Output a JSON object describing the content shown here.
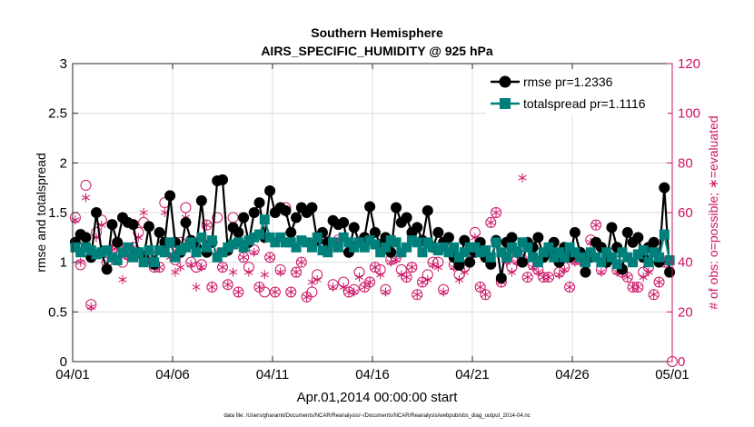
{
  "chart_data": {
    "type": "line",
    "title": "Southern Hemisphere",
    "subtitle": "AIRS_SPECIFIC_HUMIDITY @ 925 hPa",
    "xlabel": "Apr.01,2014 00:00:00 start",
    "ylabel": "rmse and totalspread",
    "y2label": "# of obs: o=possible; ∗=evaluated",
    "footnote": "data file: /Users/gharamti/Documents/NCAR/Reanalysis/~/Documents/NCAR/Reanalysis/webpub/obs_diag_output_2014-04.nc",
    "xlim": [
      0,
      30
    ],
    "ylim": [
      0,
      3
    ],
    "y2lim": [
      0,
      120
    ],
    "x_ticks": [
      0,
      5,
      10,
      15,
      20,
      25,
      30
    ],
    "x_tick_labels": [
      "04/01",
      "04/06",
      "04/11",
      "04/16",
      "04/21",
      "04/26",
      "05/01"
    ],
    "y_ticks": [
      "0",
      "0.5",
      "1",
      "1.5",
      "2",
      "2.5",
      "3"
    ],
    "y2_ticks": [
      "0",
      "20",
      "40",
      "60",
      "80",
      "100",
      "120"
    ],
    "grid": true,
    "legend_position": "top-right",
    "colors": {
      "rmse": "#000000",
      "spread": "#00807a",
      "obs": "#cc1466",
      "grid": "#dcdcdc"
    },
    "series": [
      {
        "name": "rmse pr=1.2336",
        "key": "rmse",
        "axis": "left",
        "marker": "filled-circle",
        "values": [
          1.2,
          1.28,
          1.25,
          1.05,
          1.5,
          1.1,
          0.93,
          1.38,
          1.2,
          1.45,
          1.4,
          1.38,
          1.1,
          1.05,
          1.36,
          0.98,
          1.3,
          1.2,
          1.67,
          1.2,
          1.1,
          1.4,
          1.22,
          1.15,
          1.62,
          1.1,
          1.2,
          1.82,
          1.83,
          1.12,
          1.35,
          1.3,
          1.45,
          1.2,
          1.5,
          1.6,
          1.25,
          1.72,
          1.5,
          1.55,
          1.52,
          1.3,
          1.45,
          1.55,
          1.5,
          1.55,
          1.22,
          1.3,
          1.2,
          1.42,
          1.38,
          1.4,
          1.1,
          1.35,
          1.2,
          1.25,
          1.56,
          1.3,
          1.18,
          1.25,
          1.1,
          1.55,
          1.4,
          1.45,
          1.3,
          1.35,
          1.22,
          1.52,
          1.15,
          1.3,
          1.2,
          1.25,
          1.05,
          0.97,
          1.22,
          1.0,
          1.1,
          1.2,
          1.05,
          0.98,
          1.22,
          0.84,
          1.2,
          1.25,
          1.1,
          1.0,
          1.2,
          1.15,
          1.25,
          1.05,
          1.1,
          1.2,
          1.0,
          1.15,
          1.05,
          1.3,
          1.1,
          0.9,
          1.05,
          1.2,
          1.15,
          1.0,
          1.35,
          1.15,
          0.93,
          1.3,
          1.2,
          1.25,
          1.05,
          1.15,
          1.2,
          1.0,
          1.75,
          0.9
        ]
      },
      {
        "name": "totalspread pr=1.1116",
        "key": "spread",
        "axis": "left",
        "marker": "filled-square",
        "values": [
          1.15,
          1.1,
          1.15,
          1.12,
          1.08,
          1.1,
          1.12,
          1.05,
          1.02,
          1.1,
          1.15,
          1.05,
          1.1,
          1.0,
          1.12,
          1.0,
          1.12,
          1.1,
          1.2,
          1.05,
          1.12,
          1.15,
          1.2,
          1.1,
          1.25,
          1.15,
          1.22,
          1.05,
          1.1,
          1.15,
          1.18,
          1.2,
          1.15,
          1.22,
          1.25,
          1.28,
          1.43,
          1.25,
          1.2,
          1.25,
          1.2,
          1.2,
          1.15,
          1.22,
          1.2,
          1.15,
          1.25,
          1.12,
          1.1,
          1.2,
          1.15,
          1.25,
          1.2,
          1.15,
          1.2,
          1.15,
          1.22,
          1.18,
          1.1,
          1.15,
          1.22,
          1.2,
          1.1,
          1.15,
          1.22,
          1.2,
          1.1,
          1.2,
          1.15,
          1.12,
          1.15,
          1.1,
          1.15,
          1.05,
          1.1,
          1.15,
          1.15,
          1.1,
          1.12,
          1.05,
          1.2,
          1.1,
          1.05,
          1.15,
          1.1,
          1.2,
          1.15,
          1.05,
          1.0,
          1.1,
          1.15,
          1.05,
          1.1,
          1.05,
          1.15,
          1.1,
          1.05,
          1.0,
          1.1,
          1.05,
          1.0,
          1.1,
          1.05,
          0.98,
          1.1,
          1.05,
          1.0,
          1.08,
          1.12,
          1.0,
          1.1,
          1.05,
          1.28,
          1.02
        ]
      },
      {
        "name": "obs possible",
        "key": "obs_possible",
        "axis": "right",
        "marker": "open-circle",
        "values": [
          58,
          39,
          71,
          23,
          52,
          57,
          40,
          45,
          47,
          40,
          43,
          46,
          52,
          56,
          44,
          38,
          38,
          64,
          44,
          41,
          48,
          62,
          40,
          38,
          39,
          55,
          30,
          58,
          38,
          31,
          58,
          28,
          42,
          38,
          45,
          30,
          28,
          42,
          28,
          37,
          62,
          28,
          36,
          40,
          26,
          28,
          35,
          50,
          45,
          31,
          49,
          32,
          28,
          29,
          36,
          30,
          32,
          38,
          37,
          29,
          41,
          42,
          37,
          34,
          38,
          27,
          32,
          35,
          40,
          40,
          29,
          45,
          39,
          35,
          38,
          44,
          52,
          30,
          27,
          56,
          60,
          32,
          42,
          38,
          41,
          41,
          34,
          39,
          37,
          34,
          34,
          44,
          36,
          38,
          30,
          41,
          41,
          42,
          49,
          55,
          37,
          40,
          42,
          37,
          36,
          34,
          30,
          30,
          36,
          38,
          27,
          32,
          40,
          0
        ]
      },
      {
        "name": "obs evaluated",
        "key": "obs_evaluated",
        "axis": "right",
        "marker": "asterisk",
        "values": [
          57,
          40,
          66,
          22,
          50,
          55,
          38,
          45,
          46,
          33,
          42,
          46,
          50,
          60,
          41,
          38,
          38,
          60,
          42,
          36,
          38,
          58,
          39,
          30,
          38,
          55,
          30,
          44,
          38,
          31,
          36,
          28,
          42,
          36,
          44,
          30,
          35,
          42,
          28,
          36,
          60,
          28,
          36,
          40,
          26,
          32,
          33,
          49,
          44,
          30,
          48,
          30,
          28,
          28,
          34,
          30,
          32,
          38,
          35,
          28,
          40,
          41,
          35,
          34,
          38,
          27,
          32,
          33,
          39,
          38,
          28,
          44,
          38,
          33,
          36,
          42,
          50,
          30,
          27,
          56,
          60,
          32,
          40,
          36,
          40,
          74,
          34,
          38,
          36,
          34,
          34,
          44,
          35,
          37,
          30,
          40,
          40,
          42,
          48,
          55,
          36,
          39,
          42,
          36,
          36,
          34,
          30,
          30,
          34,
          36,
          27,
          32,
          40,
          37
        ]
      }
    ]
  }
}
